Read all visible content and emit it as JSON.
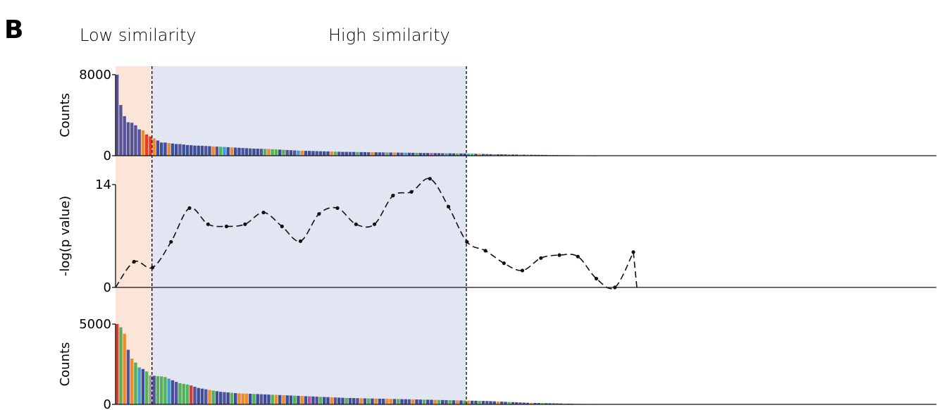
{
  "panel_label": "B",
  "regions": {
    "low": {
      "label": "Low similarity",
      "color": "#fbe5d9"
    },
    "high": {
      "label": "High similarity",
      "color": "#e1e6f2"
    }
  },
  "palette": [
    "#55539a",
    "#3f4e99",
    "#f08a2d",
    "#e53b2a",
    "#56b158",
    "#3aa0d6",
    "#9a9aa0",
    "#c04f9f",
    "#2fb19a",
    "#7b5aa6"
  ],
  "chart_data": [
    {
      "type": "bar",
      "ylabel": "Counts",
      "ylim": [
        0,
        8000
      ],
      "yticks": [
        "0",
        "8000"
      ],
      "boundaries": [
        10,
        95
      ],
      "values": [
        8000,
        5000,
        3900,
        3300,
        3250,
        3000,
        2600,
        2500,
        2100,
        1900,
        1700,
        1500,
        1300,
        1300,
        1250,
        1200,
        1150,
        1150,
        1100,
        1050,
        1030,
        1000,
        990,
        980,
        960,
        940,
        920,
        900,
        880,
        860,
        840,
        820,
        800,
        780,
        760,
        740,
        720,
        700,
        690,
        680,
        670,
        660,
        640,
        620,
        600,
        580,
        560,
        540,
        520,
        500,
        490,
        480,
        470,
        460,
        450,
        440,
        430,
        420,
        410,
        400,
        390,
        380,
        375,
        370,
        365,
        360,
        355,
        350,
        345,
        340,
        335,
        330,
        325,
        320,
        315,
        310,
        305,
        300,
        295,
        290,
        285,
        280,
        275,
        270,
        265,
        260,
        255,
        250,
        245,
        240,
        235,
        230,
        225,
        220,
        215,
        210,
        200,
        190,
        180,
        170,
        160,
        150,
        145,
        140,
        135,
        130,
        125,
        120,
        115,
        110,
        105,
        100,
        95,
        90,
        85,
        80,
        75,
        70,
        65,
        60,
        55,
        50,
        45,
        40,
        35,
        30,
        25,
        20,
        15,
        10
      ],
      "colors": [
        0,
        0,
        0,
        0,
        0,
        0,
        0,
        2,
        3,
        3,
        2,
        1,
        1,
        1,
        2,
        1,
        1,
        0,
        1,
        1,
        1,
        1,
        1,
        1,
        0,
        1,
        2,
        0,
        4,
        5,
        1,
        2,
        1,
        1,
        0,
        1,
        0,
        1,
        1,
        0,
        4,
        2,
        4,
        4,
        1,
        4,
        0,
        1,
        0,
        5,
        2,
        1,
        1,
        1,
        0,
        1,
        1,
        1,
        2,
        4,
        0,
        1,
        1,
        0,
        1,
        4,
        1,
        1,
        0,
        2,
        1,
        1,
        0,
        4,
        1,
        2,
        1,
        0,
        5,
        1,
        1,
        4,
        1,
        0,
        1,
        7,
        1,
        1,
        0,
        5,
        1,
        1,
        4,
        1,
        1,
        5,
        4,
        1,
        2,
        1,
        0,
        1,
        4,
        1,
        1,
        0,
        5,
        1,
        1,
        2,
        1,
        4,
        1,
        1,
        0,
        1,
        1,
        2,
        1,
        1,
        4,
        1,
        1,
        1,
        0,
        1,
        1,
        1,
        1,
        1
      ]
    },
    {
      "type": "line",
      "ylabel": "-log(p value)",
      "ylim": [
        0,
        14
      ],
      "yticks": [
        "0",
        "14"
      ],
      "boundaries": [
        10,
        95
      ],
      "x": [
        5,
        10,
        15,
        20,
        25,
        30,
        35,
        40,
        45,
        50,
        55,
        60,
        65,
        70,
        75,
        80,
        85,
        90,
        95,
        100,
        105,
        110,
        115,
        120,
        125,
        130,
        135,
        140,
        145,
        150,
        151
      ],
      "y": [
        3.5,
        2.7,
        6.2,
        10.8,
        8.6,
        8.3,
        8.6,
        10.2,
        8.3,
        6.3,
        10.0,
        10.8,
        8.6,
        8.6,
        12.5,
        13.0,
        14.8,
        11.0,
        6.2,
        5.0,
        3.3,
        2.3,
        4.0,
        4.4,
        4.2,
        1.2,
        0.0,
        4.8,
        0,
        0,
        0
      ],
      "points_shown": 28
    },
    {
      "type": "bar",
      "ylabel": "Counts",
      "ylim": [
        0,
        5000
      ],
      "yticks": [
        "0",
        "5000"
      ],
      "boundaries": [
        10,
        95
      ],
      "values": [
        5000,
        4800,
        4400,
        3400,
        2850,
        2600,
        2300,
        2200,
        2050,
        1800,
        1780,
        1760,
        1740,
        1700,
        1600,
        1500,
        1400,
        1320,
        1280,
        1240,
        1180,
        1100,
        1020,
        980,
        940,
        900,
        860,
        820,
        780,
        760,
        740,
        720,
        700,
        690,
        680,
        670,
        660,
        650,
        640,
        630,
        620,
        610,
        600,
        590,
        580,
        570,
        560,
        550,
        540,
        530,
        520,
        510,
        500,
        490,
        480,
        470,
        460,
        450,
        440,
        430,
        420,
        410,
        400,
        395,
        390,
        385,
        380,
        375,
        370,
        365,
        360,
        355,
        350,
        345,
        340,
        335,
        330,
        325,
        320,
        315,
        310,
        305,
        300,
        295,
        290,
        285,
        280,
        275,
        270,
        265,
        260,
        255,
        250,
        245,
        240,
        235,
        230,
        225,
        220,
        215,
        210,
        200,
        190,
        180,
        170,
        160,
        150,
        140,
        130,
        120,
        110,
        100,
        95,
        90,
        85,
        80,
        75,
        70,
        65,
        60,
        55,
        50,
        45,
        40,
        35,
        30,
        25,
        20,
        15,
        10
      ],
      "colors": [
        3,
        4,
        2,
        0,
        2,
        4,
        5,
        1,
        4,
        6,
        0,
        4,
        4,
        4,
        5,
        1,
        0,
        4,
        4,
        4,
        3,
        0,
        1,
        1,
        0,
        2,
        4,
        1,
        1,
        0,
        1,
        4,
        1,
        2,
        2,
        2,
        1,
        4,
        1,
        0,
        1,
        1,
        4,
        2,
        1,
        2,
        1,
        1,
        4,
        1,
        2,
        1,
        7,
        1,
        0,
        4,
        1,
        1,
        2,
        0,
        1,
        1,
        4,
        1,
        1,
        0,
        2,
        1,
        4,
        1,
        2,
        1,
        1,
        2,
        2,
        1,
        4,
        1,
        1,
        0,
        2,
        1,
        1,
        4,
        1,
        1,
        2,
        4,
        1,
        0,
        4,
        1,
        2,
        1,
        4,
        2,
        1,
        1,
        4,
        1,
        0,
        1,
        1,
        2,
        1,
        1,
        4,
        1,
        1,
        0,
        1,
        1,
        2,
        1,
        1,
        4,
        1,
        1,
        0,
        1,
        1,
        2,
        1,
        1,
        4,
        1,
        1,
        1,
        0,
        1
      ]
    }
  ]
}
